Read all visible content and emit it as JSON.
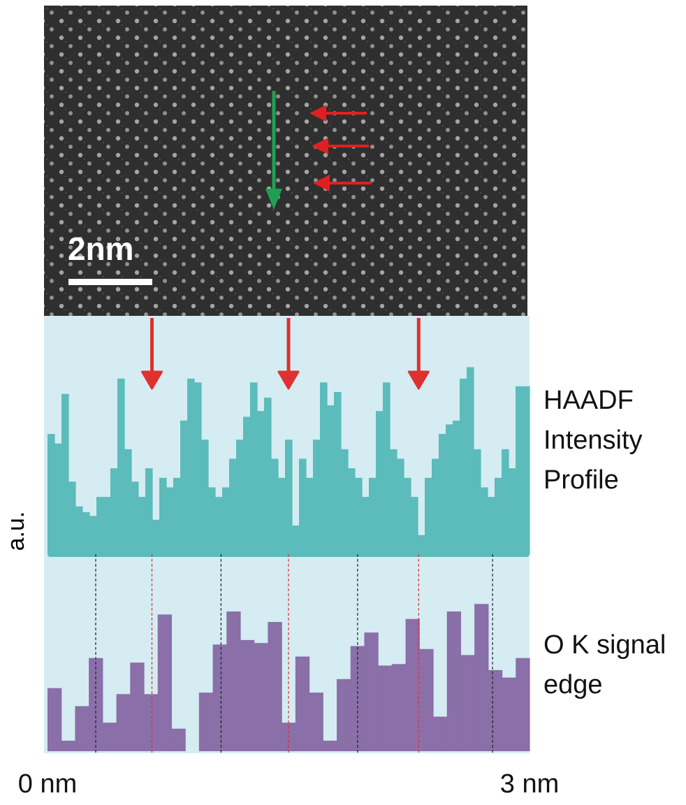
{
  "chart_data": {
    "type": "step",
    "image": {
      "scale_bar": "2nm"
    },
    "y_label": "a.u.",
    "xlim": [
      0,
      3
    ],
    "xticks": [
      {
        "value": 0,
        "label": "0 nm"
      },
      {
        "value": 3,
        "label": "3 nm"
      }
    ],
    "background": "#d5ecf2",
    "series": [
      {
        "name": [
          "HAADF",
          "Intensity",
          "Profile"
        ],
        "color": "#5bbcbb",
        "ylim": [
          0,
          1
        ],
        "values": [
          0.63,
          0.58,
          0.84,
          0.38,
          0.25,
          0.22,
          0.2,
          0.3,
          0.3,
          0.45,
          0.92,
          0.55,
          0.38,
          0.3,
          0.45,
          0.18,
          0.4,
          0.35,
          0.4,
          0.7,
          0.92,
          0.9,
          0.6,
          0.35,
          0.3,
          0.35,
          0.5,
          0.6,
          0.72,
          0.9,
          0.75,
          0.82,
          0.5,
          0.4,
          0.6,
          0.15,
          0.5,
          0.4,
          0.6,
          0.9,
          0.78,
          0.85,
          0.55,
          0.45,
          0.4,
          0.3,
          0.4,
          0.75,
          0.9,
          0.55,
          0.5,
          0.4,
          0.3,
          0.1,
          0.4,
          0.5,
          0.63,
          0.68,
          0.7,
          0.92,
          0.98,
          0.55,
          0.35,
          0.3,
          0.4,
          0.55,
          0.45,
          0.88,
          0.88
        ]
      },
      {
        "name": [
          "O K signal",
          "edge"
        ],
        "color": "#8a6fa8",
        "ylim": [
          0,
          1
        ],
        "values": [
          0.42,
          0.07,
          0.3,
          0.62,
          0.19,
          0.38,
          0.59,
          0.38,
          0.91,
          0.15,
          null,
          0.39,
          0.71,
          0.93,
          0.74,
          0.72,
          0.86,
          0.19,
          0.63,
          0.39,
          0.07,
          0.48,
          0.7,
          0.79,
          0.57,
          0.58,
          0.88,
          0.68,
          0.23,
          0.93,
          0.64,
          0.98,
          0.54,
          0.49,
          0.62
        ]
      }
    ],
    "guides": [
      {
        "color": "#222222",
        "x": [
          0.3,
          1.08,
          1.93,
          2.77
        ]
      },
      {
        "color": "#e03030",
        "x": [
          0.65,
          1.5,
          2.31
        ]
      }
    ]
  }
}
